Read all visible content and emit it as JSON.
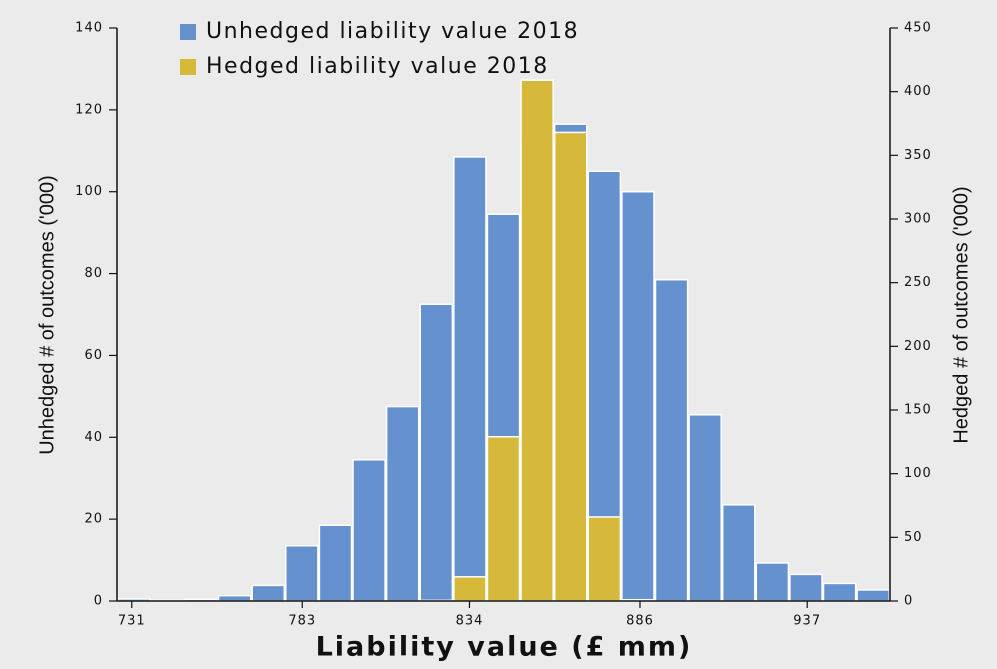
{
  "chart_data": {
    "type": "histogram",
    "xlabel": "Liability value (£ mm)",
    "ylabel": "Unhedged # of outcomes ('000)",
    "y2label": "Hedged # of outcomes ('000)",
    "bins": [
      726.5,
      736.75,
      747,
      757.25,
      767.5,
      777.75,
      788,
      798.25,
      808.5,
      818.75,
      829,
      839.25,
      849.5,
      859.75,
      870,
      880.25,
      890.5,
      900.75,
      911,
      921.25,
      931.5,
      941.75,
      952,
      962.25
    ],
    "series": [
      {
        "name": "Unhedged liability value 2018",
        "color": "#6591cf",
        "axis": "y",
        "values": [
          0.5,
          0.2,
          0.4,
          1.3,
          3.8,
          13.5,
          18.5,
          34.5,
          47.5,
          72.5,
          108.5,
          94.5,
          113,
          116.5,
          105,
          100,
          78.5,
          45.5,
          23.5,
          9.3,
          6.5,
          4.3,
          2.7
        ]
      },
      {
        "name": "Hedged liability value 2018",
        "color": "#d6b93a",
        "axis": "y2",
        "values": [
          0,
          0,
          0,
          0,
          0,
          0,
          0,
          0,
          0,
          0.5,
          19,
          129,
          409,
          368,
          66,
          1,
          0,
          0,
          0,
          0,
          0,
          0,
          0
        ]
      }
    ],
    "xlim": [
      726.5,
      962.25
    ],
    "xticks": [
      731,
      783,
      834,
      886,
      937
    ],
    "ylim": [
      0,
      140
    ],
    "yticks": [
      0,
      20,
      40,
      60,
      80,
      100,
      120,
      140
    ],
    "y2lim": [
      0,
      450
    ],
    "y2ticks": [
      0,
      50,
      100,
      150,
      200,
      250,
      300,
      350,
      400,
      450
    ],
    "legend": "upper left"
  }
}
